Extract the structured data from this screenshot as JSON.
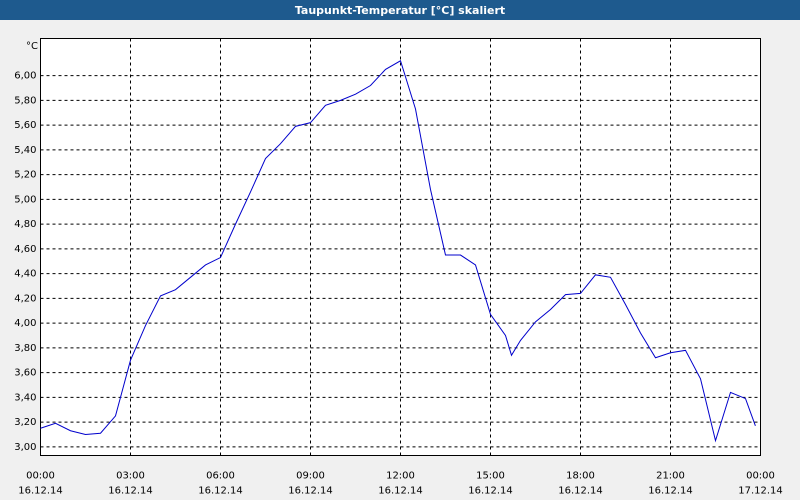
{
  "window_title": "Taupunkt-Temperatur [°C] skaliert",
  "chart_data": {
    "type": "line",
    "ylabel": "°C",
    "x": [
      0,
      0.5,
      1,
      1.5,
      2,
      2.5,
      3,
      3.5,
      4,
      4.5,
      5,
      5.5,
      6,
      6.5,
      7,
      7.5,
      8,
      8.5,
      9,
      9.5,
      10,
      10.5,
      11,
      11.5,
      12,
      12.5,
      13,
      13.5,
      14,
      14.5,
      15,
      15.5,
      15.7,
      16,
      16.5,
      17,
      17.5,
      18,
      18.5,
      19,
      19.5,
      20,
      20.5,
      21,
      21.5,
      22,
      22.5,
      23,
      23.5,
      23.83
    ],
    "series": [
      {
        "name": "Taupunkt",
        "color": "#0000cc",
        "values": [
          3.15,
          3.19,
          3.13,
          3.1,
          3.11,
          3.25,
          3.7,
          3.98,
          4.22,
          4.27,
          4.37,
          4.47,
          4.53,
          4.8,
          5.06,
          5.33,
          5.45,
          5.59,
          5.62,
          5.76,
          5.8,
          5.85,
          5.92,
          6.05,
          6.12,
          5.73,
          5.08,
          4.55,
          4.55,
          4.47,
          4.07,
          3.9,
          3.74,
          3.86,
          4.01,
          4.11,
          4.23,
          4.24,
          4.39,
          4.37,
          4.15,
          3.92,
          3.72,
          3.76,
          3.78,
          3.55,
          3.05,
          3.44,
          3.39,
          3.17
        ]
      }
    ],
    "xlim": [
      0,
      24
    ],
    "xticks": [
      {
        "value": 0,
        "label": "00:00",
        "date": "16.12.14"
      },
      {
        "value": 3,
        "label": "03:00",
        "date": "16.12.14"
      },
      {
        "value": 6,
        "label": "06:00",
        "date": "16.12.14"
      },
      {
        "value": 9,
        "label": "09:00",
        "date": "16.12.14"
      },
      {
        "value": 12,
        "label": "12:00",
        "date": "16.12.14"
      },
      {
        "value": 15,
        "label": "15:00",
        "date": "16.12.14"
      },
      {
        "value": 18,
        "label": "18:00",
        "date": "16.12.14"
      },
      {
        "value": 21,
        "label": "21:00",
        "date": "16.12.14"
      },
      {
        "value": 24,
        "label": "00:00",
        "date": "17.12.14"
      }
    ],
    "ylim": [
      2.93,
      6.3
    ],
    "yticks": [
      {
        "value": 3.0,
        "label": "3,00"
      },
      {
        "value": 3.2,
        "label": "3,20"
      },
      {
        "value": 3.4,
        "label": "3,40"
      },
      {
        "value": 3.6,
        "label": "3,60"
      },
      {
        "value": 3.8,
        "label": "3,80"
      },
      {
        "value": 4.0,
        "label": "4,00"
      },
      {
        "value": 4.2,
        "label": "4,20"
      },
      {
        "value": 4.4,
        "label": "4,40"
      },
      {
        "value": 4.6,
        "label": "4,60"
      },
      {
        "value": 4.8,
        "label": "4,80"
      },
      {
        "value": 5.0,
        "label": "5,00"
      },
      {
        "value": 5.2,
        "label": "5,20"
      },
      {
        "value": 5.4,
        "label": "5,40"
      },
      {
        "value": 5.6,
        "label": "5,60"
      },
      {
        "value": 5.8,
        "label": "5,80"
      },
      {
        "value": 6.0,
        "label": "6,00"
      }
    ],
    "grid": true
  }
}
